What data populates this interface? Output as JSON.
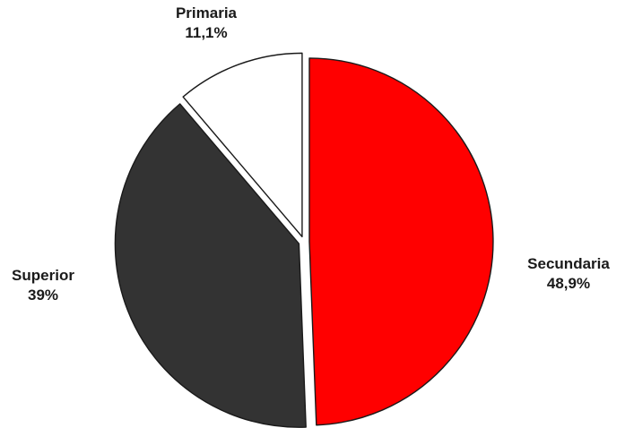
{
  "chart_data": {
    "type": "pie",
    "title": "",
    "slices": [
      {
        "name": "Secundaria",
        "value": 48.9,
        "value_label": "48,9%",
        "color": "#ff0000"
      },
      {
        "name": "Superior",
        "value": 39,
        "value_label": "39%",
        "color": "#333333"
      },
      {
        "name": "Primaria",
        "value": 11.1,
        "value_label": "11,1%",
        "color": "#ffffff"
      }
    ],
    "slice_outline_color": "#1a1a1a",
    "start_angle": "12 o'clock",
    "direction": "clockwise",
    "exploded": true,
    "legend": "none (labels outside slices)"
  }
}
